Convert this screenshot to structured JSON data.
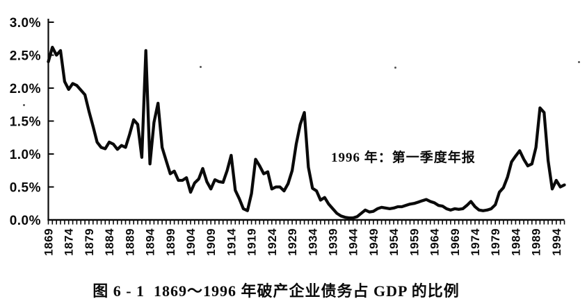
{
  "chart_data": {
    "type": "line",
    "title": "图 6 - 1  1869～1996 年破产企业债务占 GDP 的比例",
    "annotation": "1996 年：第一季度年报",
    "xlabel": "",
    "ylabel": "",
    "x_range": [
      1869,
      1996
    ],
    "ylim_percent": [
      0.0,
      3.0
    ],
    "grid": false,
    "legend": "none",
    "line_color": "#0a0a0a",
    "background_color": "#ffffff",
    "x_tick_labels": [
      "1869",
      "1874",
      "1879",
      "1884",
      "1889",
      "1894",
      "1899",
      "1904",
      "1909",
      "1914",
      "1919",
      "1924",
      "1929",
      "1934",
      "1939",
      "1944",
      "1949",
      "1954",
      "1959",
      "1964",
      "1969",
      "1974",
      "1979",
      "1984",
      "1989",
      "1994"
    ],
    "y_ticks": [
      {
        "label": "0.0%",
        "value": 0.0
      },
      {
        "label": "0.5%",
        "value": 0.5
      },
      {
        "label": "1.0%",
        "value": 1.0
      },
      {
        "label": "1.5%",
        "value": 1.5
      },
      {
        "label": "2.0%",
        "value": 2.0
      },
      {
        "label": "2.5%",
        "value": 2.5
      },
      {
        "label": "3.0%",
        "value": 3.0
      }
    ],
    "series": [
      {
        "name": "破产企业债务占 GDP 的比例 (%)",
        "start_year": 1869,
        "end_year": 1996,
        "values": [
          2.4,
          2.62,
          2.5,
          2.57,
          2.1,
          1.98,
          2.07,
          2.04,
          1.97,
          1.9,
          1.65,
          1.42,
          1.18,
          1.1,
          1.08,
          1.18,
          1.15,
          1.07,
          1.13,
          1.1,
          1.3,
          1.52,
          1.45,
          0.95,
          2.57,
          0.85,
          1.48,
          1.77,
          1.1,
          0.9,
          0.7,
          0.74,
          0.6,
          0.6,
          0.64,
          0.42,
          0.56,
          0.62,
          0.78,
          0.58,
          0.47,
          0.61,
          0.58,
          0.57,
          0.75,
          0.98,
          0.45,
          0.32,
          0.17,
          0.14,
          0.4,
          0.92,
          0.82,
          0.7,
          0.73,
          0.47,
          0.5,
          0.5,
          0.44,
          0.55,
          0.75,
          1.15,
          1.45,
          1.63,
          0.8,
          0.48,
          0.44,
          0.3,
          0.34,
          0.24,
          0.17,
          0.1,
          0.06,
          0.04,
          0.03,
          0.03,
          0.05,
          0.1,
          0.15,
          0.12,
          0.13,
          0.17,
          0.19,
          0.18,
          0.17,
          0.18,
          0.2,
          0.2,
          0.22,
          0.24,
          0.25,
          0.27,
          0.29,
          0.31,
          0.28,
          0.26,
          0.22,
          0.21,
          0.17,
          0.15,
          0.17,
          0.16,
          0.17,
          0.22,
          0.28,
          0.2,
          0.15,
          0.14,
          0.15,
          0.17,
          0.23,
          0.42,
          0.49,
          0.65,
          0.88,
          0.97,
          1.05,
          0.92,
          0.82,
          0.85,
          1.1,
          1.7,
          1.63,
          0.9,
          0.47,
          0.6,
          0.5,
          0.53
        ]
      }
    ]
  }
}
